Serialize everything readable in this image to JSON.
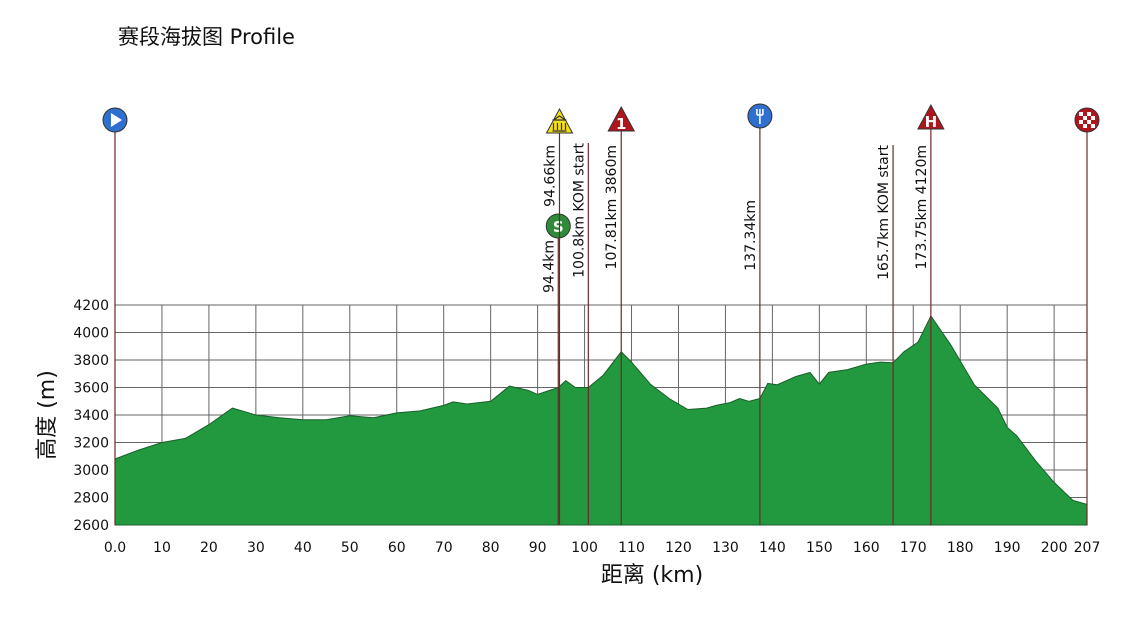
{
  "chart_data": {
    "type": "area",
    "title": "赛段海拔图  Profile",
    "xlabel": "距离 (km)",
    "ylabel": "高度 (m)",
    "color": "#22983f",
    "line_color": "#1b5f2b",
    "grid": true,
    "xlim": [
      0,
      207
    ],
    "ylim": [
      2600,
      4200
    ],
    "xticks": [
      {
        "value": 0,
        "label": "0.0"
      },
      10,
      20,
      30,
      40,
      50,
      60,
      70,
      80,
      90,
      100,
      110,
      120,
      130,
      140,
      150,
      160,
      170,
      180,
      190,
      200,
      207
    ],
    "yticks": [
      2600,
      2800,
      3000,
      3200,
      3400,
      3600,
      3800,
      4000,
      4200
    ],
    "x": [
      0,
      5,
      10,
      15,
      20,
      25,
      30,
      35,
      40,
      45,
      50,
      55,
      60,
      65,
      70,
      72,
      75,
      80,
      84,
      88,
      90,
      94.4,
      96,
      98,
      100.8,
      104,
      107.81,
      110,
      114,
      118,
      122,
      126,
      128,
      131,
      133,
      135,
      137.34,
      139,
      141,
      145,
      148,
      150,
      152,
      156,
      160,
      163,
      165.7,
      168,
      171,
      173.75,
      178,
      183,
      188,
      190,
      192,
      196,
      200,
      204,
      207
    ],
    "values": [
      3080,
      3145,
      3200,
      3230,
      3330,
      3450,
      3400,
      3380,
      3365,
      3365,
      3395,
      3380,
      3415,
      3430,
      3470,
      3495,
      3480,
      3500,
      3610,
      3580,
      3550,
      3600,
      3650,
      3600,
      3600,
      3690,
      3860,
      3785,
      3625,
      3520,
      3440,
      3450,
      3470,
      3490,
      3520,
      3500,
      3520,
      3630,
      3620,
      3680,
      3710,
      3625,
      3710,
      3730,
      3770,
      3785,
      3780,
      3860,
      3930,
      4120,
      3910,
      3620,
      3450,
      3310,
      3250,
      3070,
      2910,
      2780,
      2750
    ],
    "markers": [
      {
        "x": 0,
        "icon": {
          "shape": "circle",
          "color": "#2f6fd0",
          "glyph": "play"
        }
      },
      {
        "x": 94.4,
        "label": "94.4km",
        "icon": {
          "shape": "circle",
          "color": "#2f8a3a",
          "text": "S"
        }
      },
      {
        "x": 94.66,
        "label": "94.66km",
        "icon": {
          "shape": "triangle",
          "color": "#f3dc1a",
          "glyph": "building"
        }
      },
      {
        "x": 100.8,
        "label": "100.8km KOM start"
      },
      {
        "x": 107.81,
        "label": "107.81km  3860m",
        "icon": {
          "shape": "triangle",
          "color": "#b0151c",
          "text": "1"
        }
      },
      {
        "x": 137.34,
        "label": "137.34km",
        "icon": {
          "shape": "circle",
          "color": "#2f6fd0",
          "glyph": "fork"
        }
      },
      {
        "x": 165.7,
        "label": "165.7km KOM start"
      },
      {
        "x": 173.75,
        "label": "173.75km  4120m",
        "icon": {
          "shape": "triangle",
          "color": "#b0151c",
          "text": "H"
        }
      },
      {
        "x": 207,
        "icon": {
          "shape": "circle",
          "color": "#b0151c",
          "glyph": "checker"
        }
      }
    ]
  }
}
